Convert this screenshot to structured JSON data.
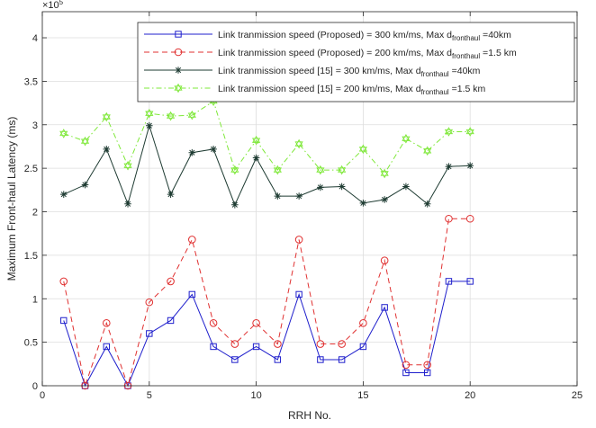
{
  "chart_data": {
    "type": "line",
    "title": "",
    "xlabel": "RRH No.",
    "ylabel": "Maximum Front-haul Latency (ms)",
    "xlim": [
      0,
      25
    ],
    "ylim": [
      0,
      4.3
    ],
    "xticks": [
      "0",
      "5",
      "10",
      "15",
      "20",
      "25"
    ],
    "yticks": [
      "0",
      "0.5",
      "1",
      "1.5",
      "2",
      "2.5",
      "3",
      "3.5",
      "4"
    ],
    "y_multiplier": "×10",
    "y_multiplier_exp": "5",
    "grid": true,
    "legend_position": "top-right",
    "x": [
      1,
      2,
      3,
      4,
      5,
      6,
      7,
      8,
      9,
      10,
      11,
      12,
      13,
      14,
      15,
      16,
      17,
      18,
      19,
      20
    ],
    "series": [
      {
        "name": "Link tranmission speed (Proposed) = 300 km/ms, Max d_fronthaul =40km",
        "legend_main": "Link tranmission speed (Proposed) = 300 km/ms, Max d",
        "legend_sub": "fronthaul",
        "legend_tail": " =40km",
        "color": "#1f1fcc",
        "dash": "",
        "marker": "square",
        "values": [
          0.75,
          0.0,
          0.45,
          0.0,
          0.6,
          0.75,
          1.05,
          0.45,
          0.3,
          0.45,
          0.3,
          1.05,
          0.3,
          0.3,
          0.45,
          0.9,
          0.15,
          0.15,
          1.2,
          1.2
        ]
      },
      {
        "name": "Link tranmission speed (Proposed) = 200 km/ms, Max d_fronthaul =1.5 km",
        "legend_main": "Link tranmission speed (Proposed) = 200 km/ms, Max d",
        "legend_sub": "fronthaul",
        "legend_tail": " =1.5 km",
        "color": "#e03030",
        "dash": "6,4",
        "marker": "circle",
        "values": [
          1.2,
          0.0,
          0.72,
          0.0,
          0.96,
          1.2,
          1.68,
          0.72,
          0.48,
          0.72,
          0.48,
          1.68,
          0.48,
          0.48,
          0.72,
          1.44,
          0.24,
          0.24,
          1.92,
          1.92
        ]
      },
      {
        "name": "Link tranmission speed [15] = 300 km/ms, Max d_fronthaul =40km",
        "legend_main": "Link tranmission speed [15] = 300 km/ms, Max d",
        "legend_sub": "fronthaul",
        "legend_tail": " =40km",
        "color": "#1e3b32",
        "dash": "",
        "marker": "asterisk",
        "values": [
          2.2,
          2.31,
          2.72,
          2.09,
          2.99,
          2.2,
          2.68,
          2.72,
          2.08,
          2.62,
          2.18,
          2.18,
          2.28,
          2.29,
          2.1,
          2.14,
          2.29,
          2.09,
          2.52,
          2.53
        ]
      },
      {
        "name": "Link tranmission speed [15] = 200 km/ms, Max d_fronthaul =1.5 km",
        "legend_main": "Link tranmission speed [15] = 200 km/ms, Max d",
        "legend_sub": "fronthaul",
        "legend_tail": " =1.5 km",
        "color": "#7ee838",
        "dash": "6,3,1.5,3",
        "marker": "hexagram",
        "values": [
          2.9,
          2.81,
          3.09,
          2.53,
          3.13,
          3.1,
          3.11,
          3.27,
          2.48,
          2.82,
          2.48,
          2.78,
          2.48,
          2.48,
          2.72,
          2.44,
          2.84,
          2.7,
          2.92,
          2.92
        ]
      }
    ]
  }
}
